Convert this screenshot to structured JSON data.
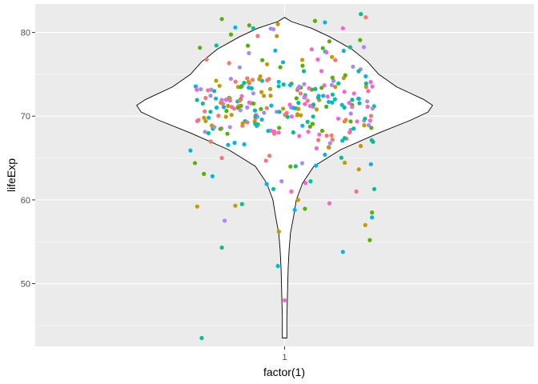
{
  "chart_data": {
    "type": "violin+jitter",
    "xlabel": "factor(1)",
    "ylabel": "lifeExp",
    "x_categories": [
      "1"
    ],
    "y_ticks": [
      50,
      60,
      70,
      80
    ],
    "ylim": [
      42.5,
      83.4
    ],
    "grid": true,
    "panel_background": "#EBEBEB",
    "grid_color": "#FFFFFF",
    "violin": {
      "fill": "#FFFFFF",
      "stroke": "#000000",
      "profile": [
        {
          "y": 43.5,
          "w": 0.01
        },
        {
          "y": 46.0,
          "w": 0.01
        },
        {
          "y": 48.0,
          "w": 0.012
        },
        {
          "y": 50.0,
          "w": 0.014
        },
        {
          "y": 52.0,
          "w": 0.016
        },
        {
          "y": 54.0,
          "w": 0.02
        },
        {
          "y": 56.0,
          "w": 0.026
        },
        {
          "y": 58.0,
          "w": 0.04
        },
        {
          "y": 60.0,
          "w": 0.052
        },
        {
          "y": 62.0,
          "w": 0.08
        },
        {
          "y": 64.0,
          "w": 0.13
        },
        {
          "y": 66.0,
          "w": 0.25
        },
        {
          "y": 68.0,
          "w": 0.42
        },
        {
          "y": 69.5,
          "w": 0.56
        },
        {
          "y": 70.5,
          "w": 0.64
        },
        {
          "y": 71.3,
          "w": 0.66
        },
        {
          "y": 72.0,
          "w": 0.62
        },
        {
          "y": 73.5,
          "w": 0.5
        },
        {
          "y": 75.0,
          "w": 0.42
        },
        {
          "y": 76.5,
          "w": 0.37
        },
        {
          "y": 78.0,
          "w": 0.3
        },
        {
          "y": 79.5,
          "w": 0.2
        },
        {
          "y": 80.5,
          "w": 0.12
        },
        {
          "y": 81.3,
          "w": 0.03
        },
        {
          "y": 81.8,
          "w": 0.0
        }
      ]
    },
    "points": {
      "count": 320,
      "jitter": 0.4,
      "palette": [
        "#F8766D",
        "#C49A00",
        "#53B400",
        "#00C094",
        "#00B6EB",
        "#A58AFF",
        "#FB61D7"
      ],
      "marked": [
        {
          "x": -0.37,
          "y": 43.5
        },
        {
          "x": 0.0,
          "y": 48.0
        },
        {
          "x": -0.03,
          "y": 52.1
        },
        {
          "x": -0.28,
          "y": 54.3
        },
        {
          "x": 0.26,
          "y": 53.8
        },
        {
          "x": 0.38,
          "y": 55.2
        },
        {
          "x": 0.36,
          "y": 57.0
        },
        {
          "x": 0.39,
          "y": 58.5
        },
        {
          "x": 0.39,
          "y": 57.9
        },
        {
          "x": -0.39,
          "y": 59.2
        },
        {
          "x": -0.22,
          "y": 59.3
        },
        {
          "x": -0.19,
          "y": 59.5
        },
        {
          "x": 0.2,
          "y": 59.6
        },
        {
          "x": 0.32,
          "y": 61.0
        },
        {
          "x": 0.4,
          "y": 61.3
        },
        {
          "x": -0.08,
          "y": 61.9
        },
        {
          "x": -0.05,
          "y": 61.3
        },
        {
          "x": 0.03,
          "y": 61.0
        },
        {
          "x": 0.06,
          "y": 60.0
        },
        {
          "x": -0.4,
          "y": 64.4
        },
        {
          "x": -0.36,
          "y": 63.1
        },
        {
          "x": -0.28,
          "y": 65.0
        },
        {
          "x": 0.14,
          "y": 64.1
        },
        {
          "x": 0.18,
          "y": 65.4
        },
        {
          "x": -0.42,
          "y": 65.9
        },
        {
          "x": -0.22,
          "y": 80.6
        },
        {
          "x": -0.14,
          "y": 80.5
        },
        {
          "x": 0.26,
          "y": 80.5
        },
        {
          "x": 0.18,
          "y": 81.2
        },
        {
          "x": -0.03,
          "y": 81.0
        },
        {
          "x": 0.34,
          "y": 82.2
        },
        {
          "x": -0.28,
          "y": 81.6
        }
      ]
    }
  }
}
